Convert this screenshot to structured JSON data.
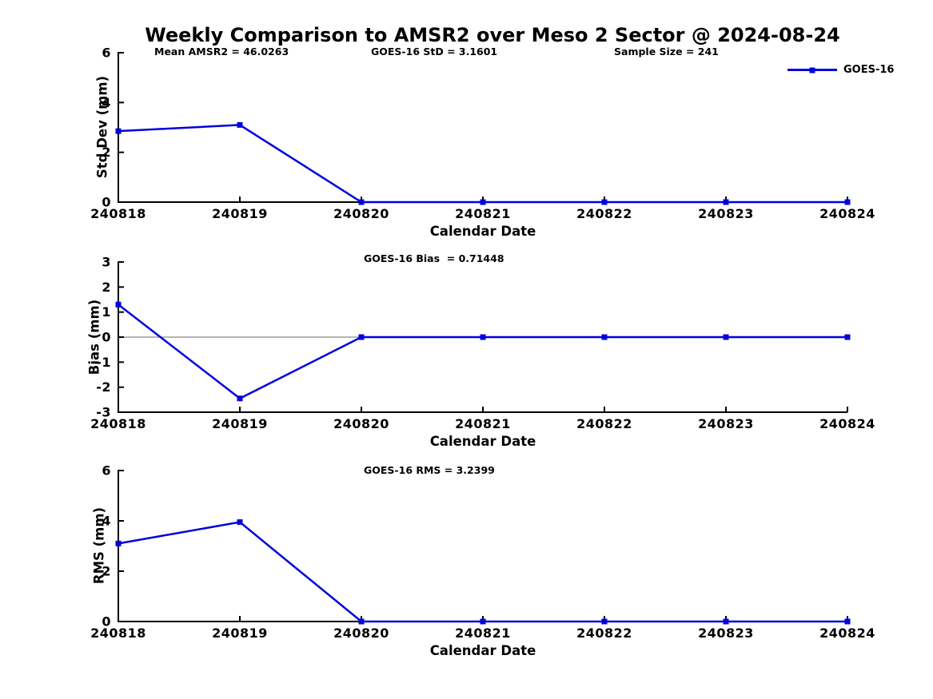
{
  "figure_title": "Weekly Comparison to AMSR2 over Meso 2 Sector @ 2024-08-24",
  "header_annotations": {
    "mean_amsr2": "Mean AMSR2 = 46.0263",
    "goes16_std": "GOES-16 StD = 3.1601",
    "sample_size": "Sample Size = 241"
  },
  "stats": {
    "mean_amsr2": 46.0263,
    "goes16_std": 3.1601,
    "sample_size": 241,
    "goes16_bias": 0.71448,
    "goes16_rms": 3.2399
  },
  "legend": {
    "label": "GOES-16",
    "marker": "square",
    "position": "top-right"
  },
  "colors": {
    "series": "#0000dd",
    "axis": "#000000",
    "zero_line": "#898989",
    "text": "#000000",
    "background": "#ffffff"
  },
  "chart_data": [
    {
      "id": "std-dev",
      "type": "line",
      "title": "",
      "xlabel": "Calendar Date",
      "ylabel": "Std Dev (mm)",
      "categories": [
        "240818",
        "240819",
        "240820",
        "240821",
        "240822",
        "240823",
        "240824"
      ],
      "series": [
        {
          "name": "GOES-16",
          "values": [
            2.85,
            3.1,
            0,
            0,
            0,
            0,
            0
          ]
        }
      ],
      "ylim": [
        0,
        6
      ],
      "yticks": [
        6,
        4,
        2,
        0
      ],
      "zero_line": false,
      "grid": false,
      "marker": "square"
    },
    {
      "id": "bias",
      "type": "line",
      "title": "GOES-16 Bias  = 0.71448",
      "xlabel": "Calendar Date",
      "ylabel": "Bias (mm)",
      "categories": [
        "240818",
        "240819",
        "240820",
        "240821",
        "240822",
        "240823",
        "240824"
      ],
      "series": [
        {
          "name": "GOES-16",
          "values": [
            1.3,
            -2.45,
            0,
            0,
            0,
            0,
            0
          ]
        }
      ],
      "ylim": [
        -3,
        3
      ],
      "yticks": [
        3,
        2,
        1,
        0,
        -1,
        -2,
        -3
      ],
      "zero_line": true,
      "grid": false,
      "marker": "square"
    },
    {
      "id": "rms",
      "type": "line",
      "title": "GOES-16 RMS = 3.2399",
      "xlabel": "Calendar Date",
      "ylabel": "RMS (mm)",
      "categories": [
        "240818",
        "240819",
        "240820",
        "240821",
        "240822",
        "240823",
        "240824"
      ],
      "series": [
        {
          "name": "GOES-16",
          "values": [
            3.1,
            3.95,
            0,
            0,
            0,
            0,
            0
          ]
        }
      ],
      "ylim": [
        0,
        6
      ],
      "yticks": [
        6,
        4,
        2,
        0
      ],
      "zero_line": false,
      "grid": false,
      "marker": "square"
    }
  ]
}
